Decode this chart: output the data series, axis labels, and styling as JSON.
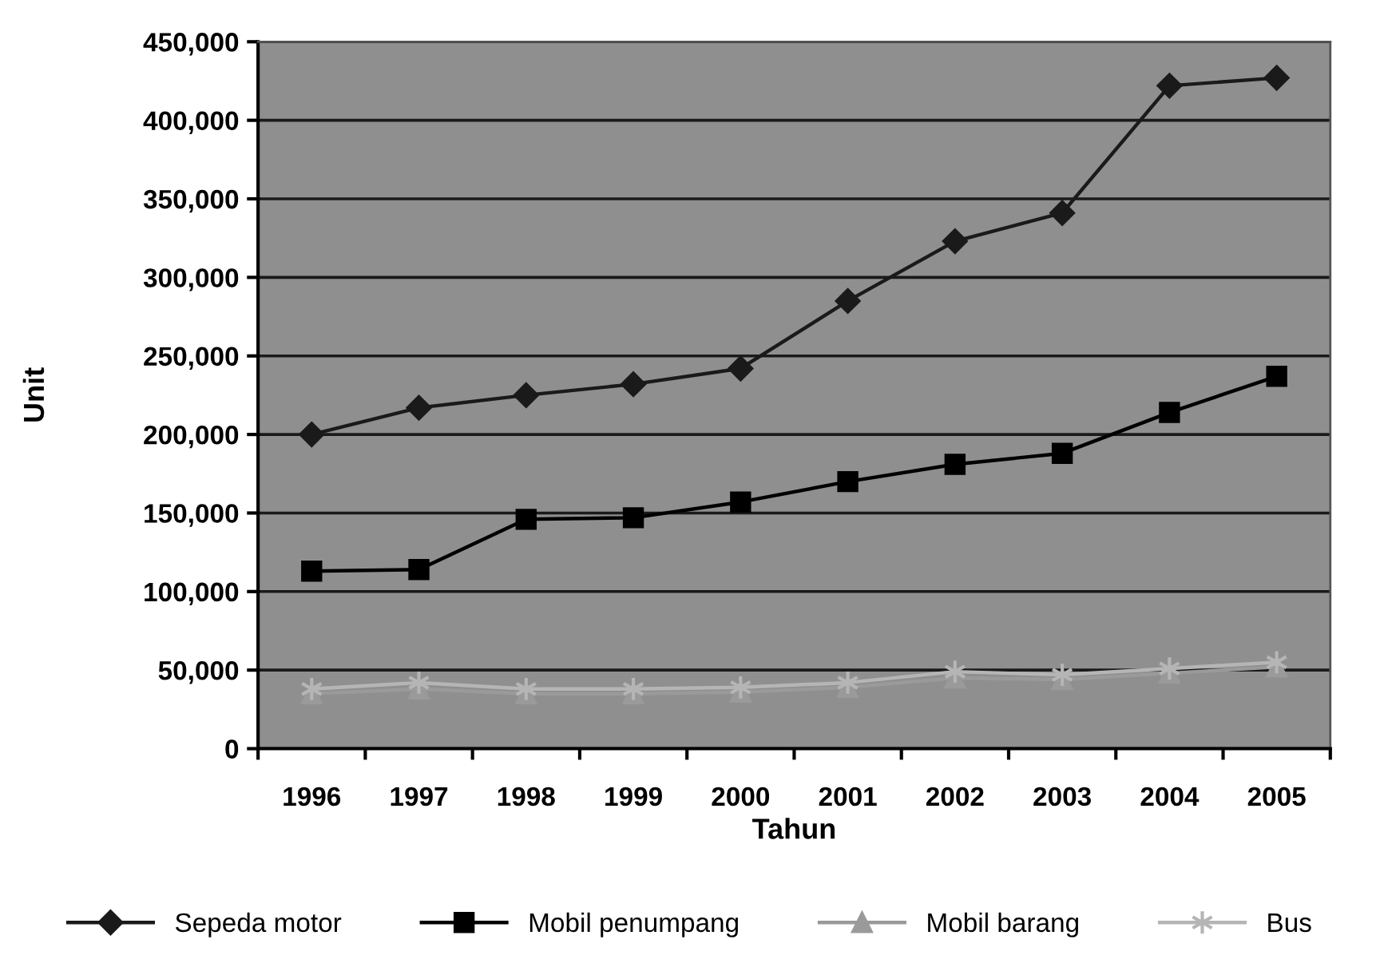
{
  "chart_data": {
    "type": "line",
    "xlabel": "Tahun",
    "ylabel": "Unit",
    "categories": [
      "1996",
      "1997",
      "1998",
      "1999",
      "2000",
      "2001",
      "2002",
      "2003",
      "2004",
      "2005"
    ],
    "series": [
      {
        "name": "Sepeda motor",
        "color": "#1a1a1a",
        "marker": "diamond",
        "values": [
          200000,
          217000,
          225000,
          232000,
          242000,
          285000,
          323000,
          341000,
          422000,
          427000
        ]
      },
      {
        "name": "Mobil penumpang",
        "color": "#000000",
        "marker": "square",
        "values": [
          113000,
          114000,
          146000,
          147000,
          157000,
          170000,
          181000,
          188000,
          214000,
          237000
        ]
      },
      {
        "name": "Mobil barang",
        "color": "#9a9a9a",
        "marker": "triangle",
        "values": [
          35000,
          38000,
          35000,
          35000,
          36000,
          39000,
          45000,
          44000,
          48000,
          52000
        ]
      },
      {
        "name": "Bus",
        "color": "#b5b5b5",
        "marker": "cross",
        "values": [
          38000,
          42000,
          38000,
          38000,
          39000,
          42000,
          49000,
          47000,
          51000,
          55000
        ]
      }
    ],
    "ylim": [
      0,
      450000
    ],
    "yticks": [
      {
        "value": 0,
        "label": "0"
      },
      {
        "value": 50000,
        "label": "50,000"
      },
      {
        "value": 100000,
        "label": "100,000"
      },
      {
        "value": 150000,
        "label": "150,000"
      },
      {
        "value": 200000,
        "label": "200,000"
      },
      {
        "value": 250000,
        "label": "250,000"
      },
      {
        "value": 300000,
        "label": "300,000"
      },
      {
        "value": 350000,
        "label": "350,000"
      },
      {
        "value": 400000,
        "label": "400,000"
      },
      {
        "value": 450000,
        "label": "450,000"
      }
    ],
    "grid": "y",
    "legend": "bottom",
    "line_style": "solid"
  }
}
